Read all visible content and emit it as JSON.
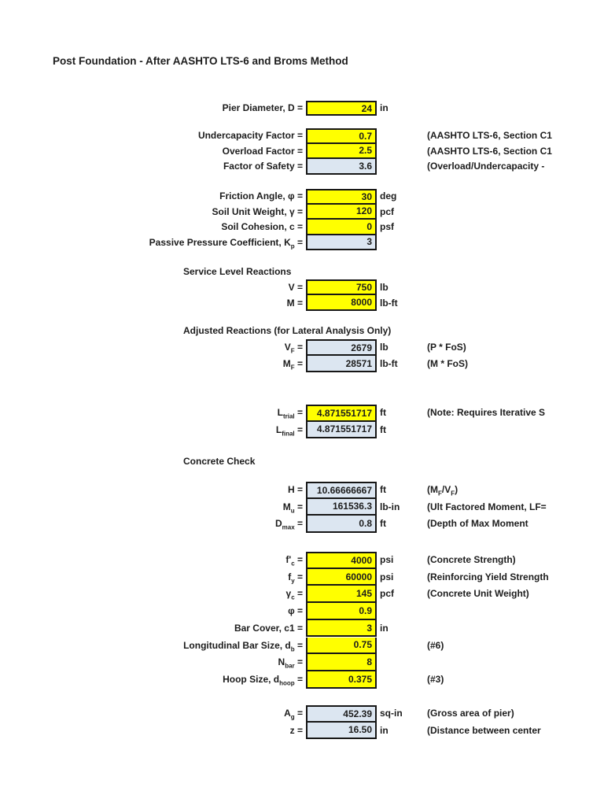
{
  "page": {
    "title": "Post Foundation - After AASHTO LTS-6 and Broms Method"
  },
  "colors": {
    "input_fill": "#ffff00",
    "calc_fill": "#dce6f1",
    "cell_border": "#161616"
  },
  "sections": [
    {
      "key": "pier",
      "rows": [
        {
          "key": "pier-diameter",
          "label": [
            {
              "t": "Pier Diameter, D ="
            }
          ],
          "value": "24",
          "unit": "in",
          "style": "input"
        }
      ]
    },
    {
      "key": "factors",
      "rows": [
        {
          "key": "undercapacity-factor",
          "label": [
            {
              "t": "Undercapacity Factor ="
            }
          ],
          "value": "0.7",
          "unit": "",
          "note": [
            {
              "t": "(AASHTO LTS-6, Section C1"
            }
          ],
          "style": "input"
        },
        {
          "key": "overload-factor",
          "label": [
            {
              "t": "Overload Factor ="
            }
          ],
          "value": "2.5",
          "unit": "",
          "note": [
            {
              "t": "(AASHTO LTS-6, Section C1"
            }
          ],
          "style": "input"
        },
        {
          "key": "factor-of-safety",
          "label": [
            {
              "t": "Factor of Safety ="
            }
          ],
          "value": "3.6",
          "unit": "",
          "note": [
            {
              "t": "(Overload/Undercapacity -"
            }
          ],
          "style": "calc"
        }
      ]
    },
    {
      "key": "soil",
      "rows": [
        {
          "key": "friction-angle",
          "label": [
            {
              "t": "Friction Angle, φ ="
            }
          ],
          "value": "30",
          "unit": "deg",
          "style": "input"
        },
        {
          "key": "soil-unit-weight",
          "label": [
            {
              "t": "Soil Unit Weight, γ ="
            }
          ],
          "value": "120",
          "unit": "pcf",
          "style": "input"
        },
        {
          "key": "soil-cohesion",
          "label": [
            {
              "t": "Soil Cohesion, c ="
            }
          ],
          "value": "0",
          "unit": "psf",
          "style": "input"
        },
        {
          "key": "passive-pressure-coefficient",
          "label": [
            {
              "t": "Passive Pressure Coefficient, K"
            },
            {
              "sub": "p"
            },
            {
              "t": " ="
            }
          ],
          "value": "3",
          "unit": "",
          "style": "calc"
        }
      ]
    },
    {
      "key": "service-level-reactions",
      "header": "Service Level Reactions",
      "rows": [
        {
          "key": "v",
          "label": [
            {
              "t": "V ="
            }
          ],
          "value": "750",
          "unit": "lb",
          "style": "input"
        },
        {
          "key": "m",
          "label": [
            {
              "t": "M ="
            }
          ],
          "value": "8000",
          "unit": "lb-ft",
          "style": "input"
        }
      ]
    },
    {
      "key": "adjusted-reactions",
      "header": "Adjusted Reactions (for Lateral Analysis Only)",
      "rows": [
        {
          "key": "vf",
          "label": [
            {
              "t": "V"
            },
            {
              "sub": "F"
            },
            {
              "t": " ="
            }
          ],
          "value": "2679",
          "unit": "lb",
          "note": [
            {
              "t": "(P * FoS)"
            }
          ],
          "style": "calc"
        },
        {
          "key": "mf",
          "label": [
            {
              "t": "M"
            },
            {
              "sub": "F"
            },
            {
              "t": " ="
            }
          ],
          "value": "28571",
          "unit": "lb-ft",
          "note": [
            {
              "t": "(M * FoS)"
            }
          ],
          "style": "calc"
        }
      ]
    },
    {
      "key": "embedment",
      "rows": [
        {
          "key": "l-trial",
          "label": [
            {
              "t": "L"
            },
            {
              "sub": "trial"
            },
            {
              "t": " ="
            }
          ],
          "value": "4.871551717",
          "unit": "ft",
          "note": [
            {
              "t": "(Note: Requires Iterative S"
            }
          ],
          "style": "input"
        },
        {
          "key": "l-final",
          "label": [
            {
              "t": "L"
            },
            {
              "sub": "final"
            },
            {
              "t": " ="
            }
          ],
          "value": "4.871551717",
          "unit": "ft",
          "style": "calc"
        }
      ]
    },
    {
      "key": "concrete-check",
      "header": "Concrete Check",
      "rows": [
        {
          "key": "h",
          "label": [
            {
              "t": "H ="
            }
          ],
          "value": "10.66666667",
          "unit": "ft",
          "note": [
            {
              "t": "(M"
            },
            {
              "sub": "F"
            },
            {
              "t": "/V"
            },
            {
              "sub": "F"
            },
            {
              "t": ")"
            }
          ],
          "style": "calc"
        },
        {
          "key": "mu",
          "label": [
            {
              "t": "M"
            },
            {
              "sub": "u"
            },
            {
              "t": " ="
            }
          ],
          "value": "161536.3",
          "unit": "lb-in",
          "note": [
            {
              "t": "(Ult Factored Moment, LF="
            }
          ],
          "style": "calc"
        },
        {
          "key": "dmax",
          "label": [
            {
              "t": "D"
            },
            {
              "sub": "max"
            },
            {
              "t": " ="
            }
          ],
          "value": "0.8",
          "unit": "ft",
          "note": [
            {
              "t": "(Depth of Max Moment"
            }
          ],
          "style": "calc"
        }
      ]
    },
    {
      "key": "concrete-inputs",
      "rows": [
        {
          "key": "fc",
          "label": [
            {
              "t": "f'"
            },
            {
              "sub": "c"
            },
            {
              "t": " ="
            }
          ],
          "value": "4000",
          "unit": "psi",
          "note": [
            {
              "t": "(Concrete Strength)"
            }
          ],
          "style": "input"
        },
        {
          "key": "fy",
          "label": [
            {
              "t": "f"
            },
            {
              "sub": "y"
            },
            {
              "t": " ="
            }
          ],
          "value": "60000",
          "unit": "psi",
          "note": [
            {
              "t": "(Reinforcing Yield Strength"
            }
          ],
          "style": "input"
        },
        {
          "key": "gamma-c",
          "label": [
            {
              "t": "γ"
            },
            {
              "sub": "c"
            },
            {
              "t": " ="
            }
          ],
          "value": "145",
          "unit": "pcf",
          "note": [
            {
              "t": "(Concrete Unit Weight)"
            }
          ],
          "style": "input"
        },
        {
          "key": "phi",
          "label": [
            {
              "t": "φ ="
            }
          ],
          "value": "0.9",
          "unit": "",
          "style": "input"
        },
        {
          "key": "bar-cover",
          "label": [
            {
              "t": "Bar Cover, c1 ="
            }
          ],
          "value": "3",
          "unit": "in",
          "style": "input"
        },
        {
          "key": "long-bar-size",
          "label": [
            {
              "t": "Longitudinal Bar Size, d"
            },
            {
              "sub": "b"
            },
            {
              "t": " ="
            }
          ],
          "value": "0.75",
          "unit": "",
          "note": [
            {
              "t": "(#6)"
            }
          ],
          "style": "input"
        },
        {
          "key": "n-bar",
          "label": [
            {
              "t": "N"
            },
            {
              "sub": "bar"
            },
            {
              "t": " ="
            }
          ],
          "value": "8",
          "unit": "",
          "style": "input"
        },
        {
          "key": "hoop-size",
          "label": [
            {
              "t": "Hoop Size, d"
            },
            {
              "sub": "hoop"
            },
            {
              "t": " ="
            }
          ],
          "value": "0.375",
          "unit": "",
          "note": [
            {
              "t": "(#3)"
            }
          ],
          "style": "input"
        }
      ]
    },
    {
      "key": "section-properties",
      "rows": [
        {
          "key": "ag",
          "label": [
            {
              "t": "A"
            },
            {
              "sub": "g"
            },
            {
              "t": " ="
            }
          ],
          "value": "452.39",
          "unit": "sq-in",
          "note": [
            {
              "t": "(Gross area of pier)"
            }
          ],
          "style": "calc"
        },
        {
          "key": "z",
          "label": [
            {
              "t": "z ="
            }
          ],
          "value": "16.50",
          "unit": "in",
          "note": [
            {
              "t": "(Distance between center"
            }
          ],
          "style": "calc"
        }
      ]
    }
  ]
}
